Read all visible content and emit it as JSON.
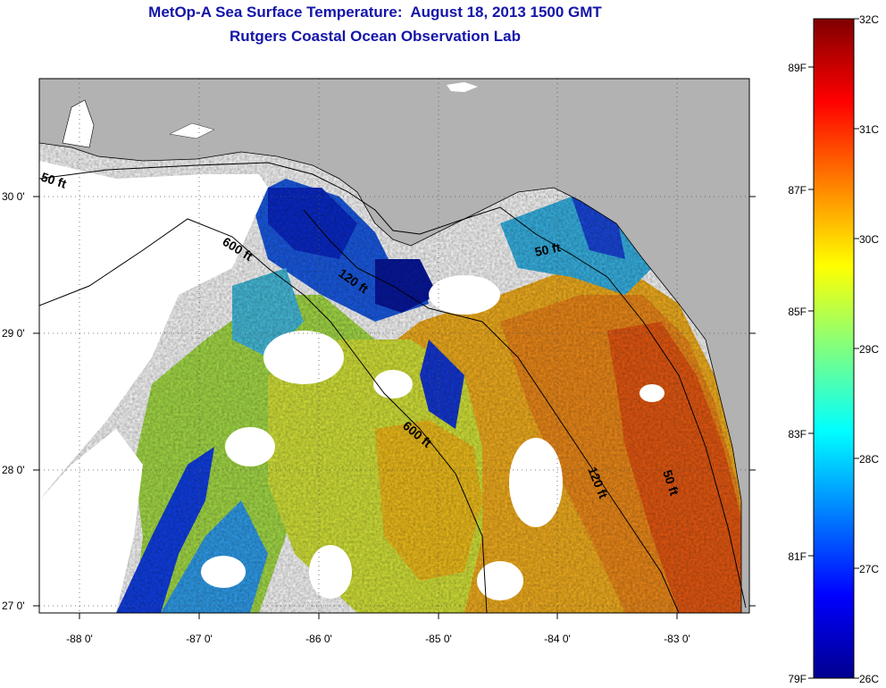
{
  "title": {
    "line1": "MetOp-A Sea Surface Temperature:  August 18, 2013 1500 GMT",
    "line2": "Rutgers Coastal Ocean Observation Lab"
  },
  "map": {
    "lat_ticks": [
      "30 0'",
      "29 0'",
      "28 0'",
      "27 0'"
    ],
    "lon_ticks": [
      "-88 0'",
      "-87 0'",
      "-86 0'",
      "-85 0'",
      "-84 0'",
      "-83 0'"
    ],
    "lat_range": [
      26.97,
      30.88
    ],
    "lon_range": [
      -88.35,
      -82.45
    ],
    "land_color": "#b2b2b2",
    "cloud_color": "#ffffff",
    "contour_labels": [
      "50 ft",
      "600 ft",
      "120 ft",
      "50 ft",
      "600 ft",
      "120 ft",
      "50 ft"
    ]
  },
  "colorbar": {
    "celsius_labels": [
      "32C",
      "31C",
      "30C",
      "29C",
      "28C",
      "27C",
      "26C"
    ],
    "fahrenheit_labels": [
      "89F",
      "87F",
      "85F",
      "83F",
      "81F",
      "79F"
    ],
    "range_c": [
      26,
      32
    ],
    "colormap": [
      "#00008f",
      "#0000ff",
      "#0080ff",
      "#00ffff",
      "#80ff80",
      "#ffff00",
      "#ff8000",
      "#ff0000",
      "#800000"
    ]
  }
}
